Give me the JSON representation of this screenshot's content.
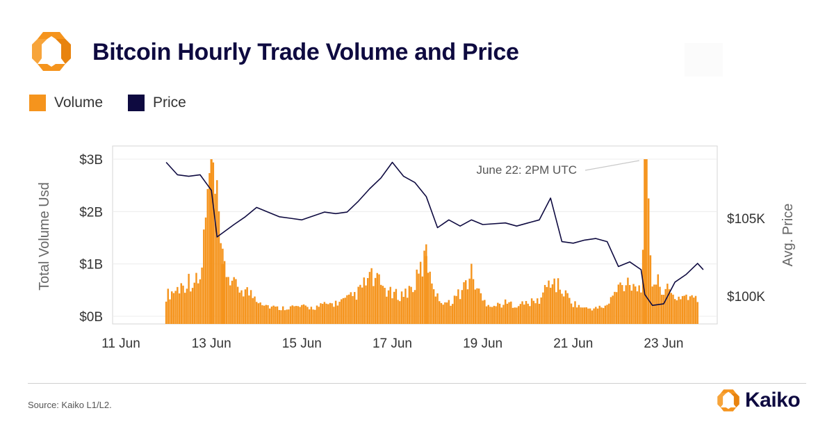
{
  "header": {
    "title": "Bitcoin Hourly Trade Volume and Price",
    "logo_icon": "kaiko-logo-icon"
  },
  "legend": [
    {
      "label": "Volume",
      "color": "#f5941d"
    },
    {
      "label": "Price",
      "color": "#0e0a40"
    }
  ],
  "footer": {
    "source": "Source: Kaiko L1/L2.",
    "brand": "Kaiko"
  },
  "chart_data": {
    "type": "bar",
    "xlabel": "",
    "ylabel": "Total Volume Usd",
    "y2label": "Avg. Price",
    "x_ticks": [
      "11 Jun",
      "13 Jun",
      "15 Jun",
      "17 Jun",
      "19 Jun",
      "21 Jun",
      "23 Jun"
    ],
    "y_ticks": [
      "$0B",
      "$1B",
      "$2B",
      "$3B"
    ],
    "y2_ticks": [
      "$100K",
      "$105K"
    ],
    "ylim": [
      0,
      3
    ],
    "y2lim": [
      98700,
      108800
    ],
    "xlim": [
      "2025-06-11T00:00",
      "2025-06-24T00:00"
    ],
    "grid": true,
    "annotation": {
      "text": "June 22: 2PM UTC",
      "x": "2025-06-22T14:00",
      "value": 3.0
    },
    "series": [
      {
        "name": "Volume",
        "kind": "bar",
        "axis": "left",
        "unit": "USD billions",
        "points": [
          [
            "2025-06-12T00:00",
            0.4
          ],
          [
            "2025-06-12T06:00",
            0.52
          ],
          [
            "2025-06-12T12:00",
            0.68
          ],
          [
            "2025-06-12T18:00",
            0.65
          ],
          [
            "2025-06-13T00:00",
            3.0
          ],
          [
            "2025-06-13T06:00",
            1.0
          ],
          [
            "2025-06-13T12:00",
            0.58
          ],
          [
            "2025-06-13T18:00",
            0.5
          ],
          [
            "2025-06-14T00:00",
            0.35
          ],
          [
            "2025-06-14T06:00",
            0.2
          ],
          [
            "2025-06-14T12:00",
            0.15
          ],
          [
            "2025-06-14T18:00",
            0.18
          ],
          [
            "2025-06-15T00:00",
            0.18
          ],
          [
            "2025-06-15T06:00",
            0.16
          ],
          [
            "2025-06-15T12:00",
            0.22
          ],
          [
            "2025-06-15T18:00",
            0.25
          ],
          [
            "2025-06-16T00:00",
            0.32
          ],
          [
            "2025-06-16T06:00",
            0.45
          ],
          [
            "2025-06-16T12:00",
            0.75
          ],
          [
            "2025-06-16T18:00",
            0.6
          ],
          [
            "2025-06-17T00:00",
            0.4
          ],
          [
            "2025-06-17T06:00",
            0.42
          ],
          [
            "2025-06-17T12:00",
            0.6
          ],
          [
            "2025-06-17T18:00",
            1.15
          ],
          [
            "2025-06-18T00:00",
            0.35
          ],
          [
            "2025-06-18T06:00",
            0.25
          ],
          [
            "2025-06-18T12:00",
            0.45
          ],
          [
            "2025-06-18T18:00",
            0.8
          ],
          [
            "2025-06-19T00:00",
            0.3
          ],
          [
            "2025-06-19T06:00",
            0.2
          ],
          [
            "2025-06-19T12:00",
            0.25
          ],
          [
            "2025-06-19T18:00",
            0.22
          ],
          [
            "2025-06-20T00:00",
            0.25
          ],
          [
            "2025-06-20T06:00",
            0.3
          ],
          [
            "2025-06-20T12:00",
            0.7
          ],
          [
            "2025-06-20T18:00",
            0.5
          ],
          [
            "2025-06-21T00:00",
            0.25
          ],
          [
            "2025-06-21T06:00",
            0.15
          ],
          [
            "2025-06-21T12:00",
            0.15
          ],
          [
            "2025-06-21T18:00",
            0.2
          ],
          [
            "2025-06-22T00:00",
            0.55
          ],
          [
            "2025-06-22T06:00",
            0.7
          ],
          [
            "2025-06-22T12:00",
            0.5
          ],
          [
            "2025-06-22T14:00",
            3.0
          ],
          [
            "2025-06-22T18:00",
            0.7
          ],
          [
            "2025-06-23T00:00",
            0.55
          ],
          [
            "2025-06-23T06:00",
            0.35
          ],
          [
            "2025-06-23T12:00",
            0.4
          ],
          [
            "2025-06-23T18:00",
            0.3
          ]
        ]
      },
      {
        "name": "Price",
        "kind": "line",
        "axis": "right",
        "unit": "USD",
        "points": [
          [
            "2025-06-12T00:00",
            108600
          ],
          [
            "2025-06-12T06:00",
            107800
          ],
          [
            "2025-06-12T12:00",
            107700
          ],
          [
            "2025-06-12T18:00",
            107800
          ],
          [
            "2025-06-13T00:00",
            106800
          ],
          [
            "2025-06-13T03:00",
            103800
          ],
          [
            "2025-06-13T12:00",
            104600
          ],
          [
            "2025-06-13T18:00",
            105100
          ],
          [
            "2025-06-14T00:00",
            105700
          ],
          [
            "2025-06-14T12:00",
            105100
          ],
          [
            "2025-06-14T18:00",
            105000
          ],
          [
            "2025-06-15T00:00",
            104900
          ],
          [
            "2025-06-15T12:00",
            105400
          ],
          [
            "2025-06-15T18:00",
            105300
          ],
          [
            "2025-06-16T00:00",
            105400
          ],
          [
            "2025-06-16T06:00",
            106100
          ],
          [
            "2025-06-16T12:00",
            106900
          ],
          [
            "2025-06-16T18:00",
            107600
          ],
          [
            "2025-06-17T00:00",
            108600
          ],
          [
            "2025-06-17T06:00",
            107700
          ],
          [
            "2025-06-17T12:00",
            107300
          ],
          [
            "2025-06-17T18:00",
            106400
          ],
          [
            "2025-06-18T00:00",
            104400
          ],
          [
            "2025-06-18T06:00",
            104900
          ],
          [
            "2025-06-18T12:00",
            104500
          ],
          [
            "2025-06-18T18:00",
            104900
          ],
          [
            "2025-06-19T00:00",
            104600
          ],
          [
            "2025-06-19T12:00",
            104700
          ],
          [
            "2025-06-19T18:00",
            104500
          ],
          [
            "2025-06-20T00:00",
            104700
          ],
          [
            "2025-06-20T06:00",
            104900
          ],
          [
            "2025-06-20T12:00",
            106300
          ],
          [
            "2025-06-20T18:00",
            103500
          ],
          [
            "2025-06-21T00:00",
            103400
          ],
          [
            "2025-06-21T06:00",
            103600
          ],
          [
            "2025-06-21T12:00",
            103700
          ],
          [
            "2025-06-21T18:00",
            103500
          ],
          [
            "2025-06-22T00:00",
            101900
          ],
          [
            "2025-06-22T06:00",
            102200
          ],
          [
            "2025-06-22T12:00",
            101700
          ],
          [
            "2025-06-22T14:00",
            100100
          ],
          [
            "2025-06-22T18:00",
            99400
          ],
          [
            "2025-06-23T00:00",
            99500
          ],
          [
            "2025-06-23T06:00",
            100900
          ],
          [
            "2025-06-23T12:00",
            101400
          ],
          [
            "2025-06-23T18:00",
            102100
          ],
          [
            "2025-06-23T21:00",
            101700
          ]
        ]
      }
    ]
  }
}
